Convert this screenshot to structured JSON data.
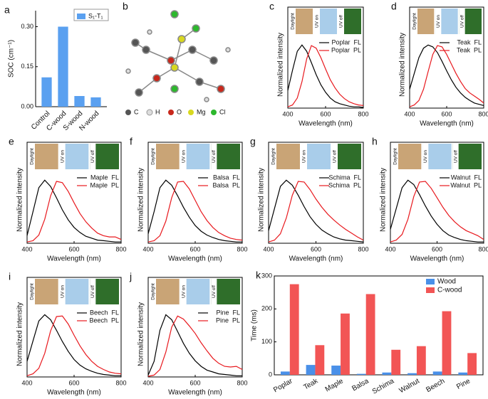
{
  "chart_data": [
    {
      "type": "bar",
      "panel": "a",
      "y_label": "SOC (cm⁻¹)",
      "categories": [
        "Control",
        "C-wood",
        "S-wood",
        "N-wood"
      ],
      "series": [
        {
          "name": "S₁-T₁",
          "color": "#5aa0f0",
          "values": [
            0.11,
            0.3,
            0.04,
            0.035
          ]
        }
      ],
      "ylim": [
        0,
        0.36
      ],
      "yticks": [
        {
          "value": 0,
          "label": "0.00"
        },
        {
          "value": 0.15,
          "label": "0.15"
        },
        {
          "value": 0.3,
          "label": "0.30"
        }
      ]
    },
    {
      "type": "line",
      "panel": "c",
      "x_label": "Wavelength (nm)",
      "y_label": "Normalized intensity",
      "photo_labels": [
        "Daylight",
        "UV on",
        "UV off"
      ],
      "x": [
        400,
        425,
        450,
        475,
        500,
        525,
        550,
        575,
        600,
        625,
        650,
        675,
        700,
        725,
        750,
        775,
        800
      ],
      "xlim": [
        400,
        800
      ],
      "xticks": [
        400,
        600,
        800
      ],
      "ylim": [
        0,
        1.6
      ],
      "series": [
        {
          "name": "Poplar  FL",
          "color": "#000000",
          "values": [
            0.28,
            0.6,
            0.9,
            1.0,
            0.9,
            0.72,
            0.53,
            0.37,
            0.25,
            0.16,
            0.1,
            0.07,
            0.05,
            0.03,
            0.02,
            0.02,
            0.01
          ]
        },
        {
          "name": "Poplar  PL",
          "color": "#e8191e",
          "values": [
            0.02,
            0.05,
            0.16,
            0.42,
            0.78,
            0.99,
            0.95,
            0.8,
            0.62,
            0.45,
            0.32,
            0.22,
            0.15,
            0.1,
            0.07,
            0.05,
            0.04
          ]
        }
      ]
    },
    {
      "type": "line",
      "panel": "d",
      "x_label": "Wavelength (nm)",
      "y_label": "Normalized intensity",
      "photo_labels": [
        "Daylight",
        "UV on",
        "UV off"
      ],
      "x": [
        400,
        425,
        450,
        475,
        500,
        525,
        550,
        575,
        600,
        625,
        650,
        675,
        700,
        725,
        750,
        775,
        800
      ],
      "xlim": [
        400,
        800
      ],
      "xticks": [
        400,
        600,
        800
      ],
      "ylim": [
        0,
        1.6
      ],
      "series": [
        {
          "name": "Teak  FL",
          "color": "#000000",
          "values": [
            0.3,
            0.55,
            0.8,
            0.95,
            1.0,
            0.97,
            0.88,
            0.74,
            0.59,
            0.45,
            0.33,
            0.24,
            0.17,
            0.12,
            0.08,
            0.06,
            0.04
          ]
        },
        {
          "name": "Teak  PL",
          "color": "#e8191e",
          "values": [
            0.02,
            0.05,
            0.12,
            0.3,
            0.58,
            0.85,
            0.99,
            0.97,
            0.85,
            0.7,
            0.55,
            0.42,
            0.31,
            0.24,
            0.19,
            0.14,
            0.08
          ]
        }
      ]
    },
    {
      "type": "line",
      "panel": "e",
      "x_label": "Wavelength (nm)",
      "y_label": "Normalized intensity",
      "photo_labels": [
        "Daylight",
        "UV on",
        "UV off"
      ],
      "x": [
        400,
        425,
        450,
        475,
        500,
        525,
        550,
        575,
        600,
        625,
        650,
        675,
        700,
        725,
        750,
        775,
        800
      ],
      "xlim": [
        400,
        800
      ],
      "xticks": [
        400,
        600,
        800
      ],
      "ylim": [
        0,
        1.6
      ],
      "series": [
        {
          "name": "Maple  FL",
          "color": "#000000",
          "values": [
            0.12,
            0.5,
            0.88,
            1.0,
            0.9,
            0.72,
            0.53,
            0.37,
            0.25,
            0.17,
            0.11,
            0.08,
            0.05,
            0.04,
            0.03,
            0.02,
            0.02
          ]
        },
        {
          "name": "Maple  PL",
          "color": "#e8191e",
          "values": [
            0.02,
            0.04,
            0.13,
            0.38,
            0.75,
            0.98,
            0.96,
            0.82,
            0.64,
            0.47,
            0.34,
            0.24,
            0.16,
            0.12,
            0.1,
            0.1,
            0.06
          ]
        }
      ]
    },
    {
      "type": "line",
      "panel": "f",
      "x_label": "Wavelength (nm)",
      "y_label": "Normalized intensity",
      "photo_labels": [
        "Daylight",
        "UV on",
        "UV off"
      ],
      "x": [
        400,
        425,
        450,
        475,
        500,
        525,
        550,
        575,
        600,
        625,
        650,
        675,
        700,
        725,
        750,
        775,
        800
      ],
      "xlim": [
        400,
        800
      ],
      "xticks": [
        400,
        600,
        800
      ],
      "ylim": [
        0,
        1.6
      ],
      "series": [
        {
          "name": "Balsa  FL",
          "color": "#000000",
          "values": [
            0.15,
            0.5,
            0.88,
            1.0,
            0.92,
            0.75,
            0.57,
            0.41,
            0.28,
            0.19,
            0.13,
            0.09,
            0.06,
            0.04,
            0.03,
            0.02,
            0.02
          ]
        },
        {
          "name": "Balsa  PL",
          "color": "#e8191e",
          "values": [
            0.02,
            0.04,
            0.12,
            0.35,
            0.72,
            0.97,
            0.98,
            0.86,
            0.68,
            0.5,
            0.36,
            0.25,
            0.17,
            0.12,
            0.08,
            0.06,
            0.05
          ]
        }
      ]
    },
    {
      "type": "line",
      "panel": "g",
      "x_label": "Wavelength (nm)",
      "y_label": "Normalized intensity",
      "photo_labels": [
        "Daylight",
        "UV on",
        "UV off"
      ],
      "x": [
        400,
        425,
        450,
        475,
        500,
        525,
        550,
        575,
        600,
        625,
        650,
        675,
        700,
        725,
        750,
        775,
        800
      ],
      "xlim": [
        400,
        800
      ],
      "xticks": [
        400,
        600,
        800
      ],
      "ylim": [
        0,
        1.6
      ],
      "series": [
        {
          "name": "Schima  FL",
          "color": "#000000",
          "values": [
            0.2,
            0.55,
            0.9,
            1.0,
            0.92,
            0.76,
            0.58,
            0.42,
            0.3,
            0.21,
            0.15,
            0.1,
            0.07,
            0.05,
            0.04,
            0.03,
            0.02
          ]
        },
        {
          "name": "Schima  PL",
          "color": "#e8191e",
          "values": [
            0.02,
            0.05,
            0.15,
            0.4,
            0.76,
            0.98,
            0.97,
            0.85,
            0.7,
            0.57,
            0.46,
            0.37,
            0.29,
            0.22,
            0.16,
            0.1,
            0.05
          ]
        }
      ]
    },
    {
      "type": "line",
      "panel": "h",
      "x_label": "Wavelength (nm)",
      "y_label": "Normalized intensity",
      "photo_labels": [
        "Daylight",
        "UV on",
        "UV off"
      ],
      "x": [
        400,
        425,
        450,
        475,
        500,
        525,
        550,
        575,
        600,
        625,
        650,
        675,
        700,
        725,
        750,
        775,
        800
      ],
      "xlim": [
        400,
        800
      ],
      "xticks": [
        400,
        600,
        800
      ],
      "ylim": [
        0,
        1.6
      ],
      "series": [
        {
          "name": "Walnut  FL",
          "color": "#000000",
          "values": [
            0.22,
            0.55,
            0.88,
            1.0,
            0.93,
            0.77,
            0.59,
            0.43,
            0.3,
            0.2,
            0.13,
            0.09,
            0.06,
            0.04,
            0.03,
            0.02,
            0.02
          ]
        },
        {
          "name": "Walnut  PL",
          "color": "#e8191e",
          "values": [
            0.02,
            0.05,
            0.14,
            0.38,
            0.74,
            0.97,
            0.98,
            0.87,
            0.72,
            0.57,
            0.44,
            0.34,
            0.26,
            0.2,
            0.16,
            0.12,
            0.06
          ]
        }
      ]
    },
    {
      "type": "line",
      "panel": "i",
      "x_label": "Wavelength (nm)",
      "y_label": "Normalized intensity",
      "photo_labels": [
        "Daylight",
        "UV on",
        "UV off"
      ],
      "x": [
        400,
        425,
        450,
        475,
        500,
        525,
        550,
        575,
        600,
        625,
        650,
        675,
        700,
        725,
        750,
        775,
        800
      ],
      "xlim": [
        400,
        800
      ],
      "xticks": [
        400,
        600,
        800
      ],
      "ylim": [
        0,
        1.6
      ],
      "series": [
        {
          "name": "Beech  FL",
          "color": "#000000",
          "values": [
            0.25,
            0.58,
            0.9,
            1.0,
            0.92,
            0.75,
            0.57,
            0.41,
            0.28,
            0.19,
            0.13,
            0.09,
            0.06,
            0.04,
            0.03,
            0.02,
            0.02
          ]
        },
        {
          "name": "Beech  PL",
          "color": "#e8191e",
          "values": [
            0.02,
            0.05,
            0.14,
            0.38,
            0.74,
            0.97,
            0.98,
            0.85,
            0.67,
            0.5,
            0.36,
            0.25,
            0.17,
            0.12,
            0.08,
            0.06,
            0.05
          ]
        }
      ]
    },
    {
      "type": "line",
      "panel": "j",
      "x_label": "Wavelength (nm)",
      "y_label": "Normalized intensity",
      "photo_labels": [
        "Daylight",
        "UV on",
        "UV off"
      ],
      "x": [
        400,
        425,
        450,
        475,
        500,
        525,
        550,
        575,
        600,
        625,
        650,
        675,
        700,
        725,
        750,
        775,
        800
      ],
      "xlim": [
        400,
        800
      ],
      "xticks": [
        400,
        600,
        800
      ],
      "ylim": [
        0,
        1.6
      ],
      "series": [
        {
          "name": "Pine  FL",
          "color": "#000000",
          "values": [
            0.03,
            0.25,
            0.75,
            1.0,
            0.92,
            0.73,
            0.54,
            0.38,
            0.26,
            0.17,
            0.11,
            0.08,
            0.05,
            0.04,
            0.03,
            0.02,
            0.02
          ]
        },
        {
          "name": "Pine  PL",
          "color": "#e8191e",
          "values": [
            0.01,
            0.03,
            0.12,
            0.4,
            0.8,
            0.98,
            0.93,
            0.82,
            0.7,
            0.55,
            0.42,
            0.3,
            0.22,
            0.17,
            0.16,
            0.17,
            0.12
          ]
        }
      ]
    },
    {
      "type": "bar",
      "panel": "k",
      "y_label": "Time (ms)",
      "categories": [
        "Poplar",
        "Teak",
        "Maple",
        "Balsa",
        "Schima",
        "Walnut",
        "Beech",
        "Pine"
      ],
      "series": [
        {
          "name": "Wood",
          "color": "#4a90e8",
          "values": [
            10,
            30,
            28,
            3,
            7,
            5,
            10,
            7
          ]
        },
        {
          "name": "C-wood",
          "color": "#f25555",
          "values": [
            275,
            90,
            186,
            245,
            76,
            87,
            193,
            66
          ]
        }
      ],
      "ylim": [
        0,
        300
      ],
      "yticks": [
        0,
        100,
        200,
        300
      ]
    }
  ],
  "diagram": {
    "panel": "b",
    "legend": [
      "C",
      "H",
      "O",
      "Mg",
      "Cl"
    ]
  }
}
